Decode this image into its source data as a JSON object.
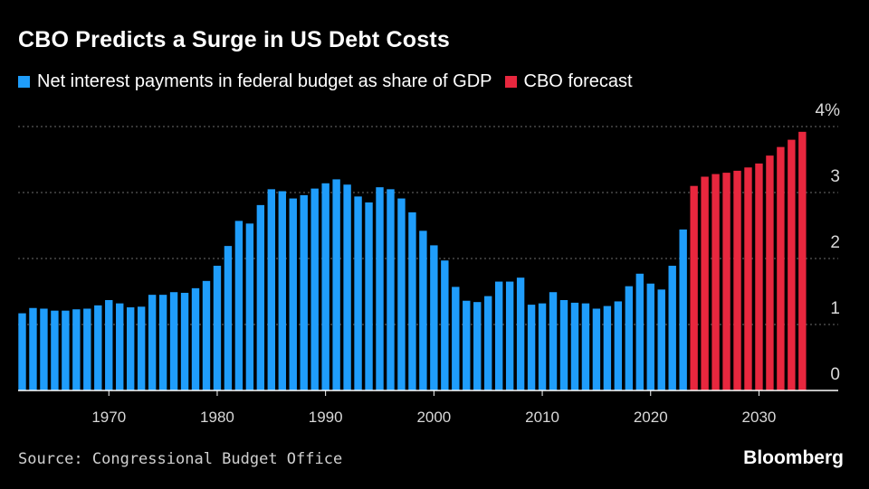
{
  "header": {
    "title": "CBO Predicts a Surge in US Debt Costs"
  },
  "legend": [
    {
      "label": "Net interest payments in federal budget as share of GDP",
      "color": "#1f9dfb"
    },
    {
      "label": "CBO forecast",
      "color": "#e8273e"
    }
  ],
  "footer": {
    "source": "Source: Congressional Budget Office",
    "brand": "Bloomberg"
  },
  "chart_data": {
    "type": "bar",
    "xlim": [
      1962,
      2034
    ],
    "ylim": [
      0,
      4
    ],
    "y_ticks": [
      {
        "value": 0,
        "label": "0"
      },
      {
        "value": 1,
        "label": "1"
      },
      {
        "value": 2,
        "label": "2"
      },
      {
        "value": 3,
        "label": "3"
      },
      {
        "value": 4,
        "label": "4%"
      }
    ],
    "x_ticks": [
      1970,
      1980,
      1990,
      2000,
      2010,
      2020,
      2030
    ],
    "grid": true,
    "legend_position": "top",
    "series": [
      {
        "name": "Net interest payments in federal budget as share of GDP",
        "color": "#1f9dfb",
        "start_year": 1962,
        "values": [
          1.17,
          1.25,
          1.24,
          1.21,
          1.21,
          1.23,
          1.24,
          1.29,
          1.37,
          1.32,
          1.26,
          1.27,
          1.45,
          1.45,
          1.49,
          1.48,
          1.55,
          1.66,
          1.89,
          2.19,
          2.57,
          2.53,
          2.81,
          3.05,
          3.02,
          2.91,
          2.96,
          3.06,
          3.14,
          3.2,
          3.12,
          2.94,
          2.85,
          3.08,
          3.05,
          2.91,
          2.7,
          2.42,
          2.2,
          1.97,
          1.57,
          1.36,
          1.34,
          1.43,
          1.65,
          1.65,
          1.71,
          1.3,
          1.32,
          1.49,
          1.37,
          1.33,
          1.32,
          1.24,
          1.28,
          1.35,
          1.58,
          1.77,
          1.62,
          1.53,
          1.89,
          2.44
        ]
      },
      {
        "name": "CBO forecast",
        "color": "#e8273e",
        "start_year": 2024,
        "values": [
          3.1,
          3.24,
          3.28,
          3.3,
          3.33,
          3.38,
          3.44,
          3.56,
          3.69,
          3.8,
          3.92
        ]
      }
    ]
  }
}
